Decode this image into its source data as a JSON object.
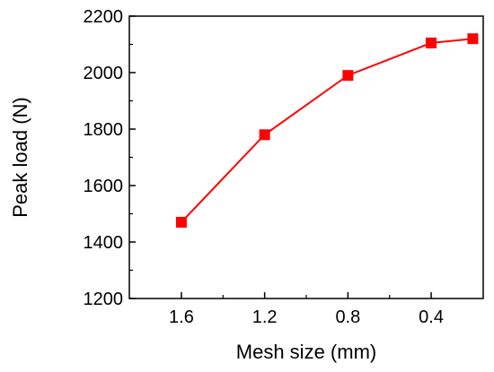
{
  "chart_data": {
    "type": "line",
    "title": "",
    "xlabel": "Mesh size (mm)",
    "ylabel": "Peak load (N)",
    "x": [
      1.6,
      1.2,
      0.8,
      0.4,
      0.2
    ],
    "xlim": [
      1.85,
      0.15
    ],
    "x_ticks": [
      1.6,
      1.2,
      0.8,
      0.4
    ],
    "x_tick_labels": [
      "1.6",
      "1.2",
      "0.8",
      "0.4"
    ],
    "ylim": [
      1200,
      2200
    ],
    "y_ticks": [
      1200,
      1400,
      1600,
      1800,
      2000,
      2200
    ],
    "y_tick_labels": [
      "1200",
      "1400",
      "1600",
      "1800",
      "2000",
      "2200"
    ],
    "x_axis_reversed": true,
    "grid": false,
    "legend": "none",
    "series": [
      {
        "values": [
          1470,
          1780,
          1990,
          2105,
          2120
        ],
        "color": "#ff0000",
        "marker": "square"
      }
    ]
  }
}
